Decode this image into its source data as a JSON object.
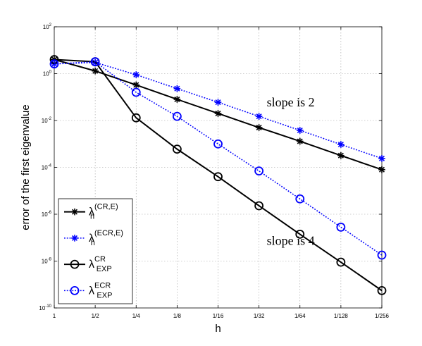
{
  "chart_data": {
    "type": "line",
    "title": "",
    "xlabel": "h",
    "ylabel": "error of the first eigenvalue",
    "yscale": "log",
    "ylim": [
      1e-10,
      100
    ],
    "grid": true,
    "legend_position": "bottom-left",
    "categories": [
      "1",
      "1/2",
      "1/4",
      "1/8",
      "1/16",
      "1/32",
      "1/64",
      "1/128",
      "1/256"
    ],
    "x": [
      1,
      0.5,
      0.25,
      0.125,
      0.0625,
      0.03125,
      0.015625,
      0.0078125,
      0.00390625
    ],
    "yticks": [
      {
        "base": "10",
        "exp": "2"
      },
      {
        "base": "10",
        "exp": "0"
      },
      {
        "base": "10",
        "exp": "-2"
      },
      {
        "base": "10",
        "exp": "-4"
      },
      {
        "base": "10",
        "exp": "-6"
      },
      {
        "base": "10",
        "exp": "-8"
      },
      {
        "base": "10",
        "exp": "-10"
      }
    ],
    "yticks_values": [
      100,
      1,
      0.01,
      0.0001,
      1e-06,
      1e-08,
      1e-10
    ],
    "series": [
      {
        "name": "λ_h^(CR,E)",
        "legend": {
          "sym": "λ",
          "sub": "h",
          "sup": "(CR,E)"
        },
        "marker": "asterisk",
        "color": "#000000",
        "dash": "solid",
        "values": [
          4.0,
          1.3,
          0.33,
          0.08,
          0.02,
          0.005,
          0.0013,
          0.00032,
          8e-05
        ]
      },
      {
        "name": "λ_h^(ECR,E)",
        "legend": {
          "sym": "λ",
          "sub": "h",
          "sup": "(ECR,E)"
        },
        "marker": "asterisk",
        "color": "#0000ff",
        "dash": "dotted",
        "values": [
          2.6,
          3.0,
          0.9,
          0.23,
          0.06,
          0.015,
          0.0038,
          0.00095,
          0.00024
        ]
      },
      {
        "name": "λ_EXP^CR",
        "legend": {
          "sym": "λ",
          "sub": "EXP",
          "sup": "CR"
        },
        "marker": "circle",
        "color": "#000000",
        "dash": "solid",
        "values": [
          4.0,
          3.2,
          0.013,
          0.0006,
          4e-05,
          2.3e-06,
          1.4e-07,
          9e-09,
          5.5e-10
        ]
      },
      {
        "name": "λ_EXP^ECR",
        "legend": {
          "sym": "λ",
          "sub": "EXP",
          "sup": "ECR"
        },
        "marker": "circle",
        "color": "#0000ff",
        "dash": "dotted",
        "values": [
          2.6,
          3.2,
          0.16,
          0.015,
          0.001,
          7e-05,
          4.5e-06,
          2.8e-07,
          1.8e-08
        ]
      }
    ],
    "annotations": [
      {
        "text": "slope is 2",
        "x": 0.03125,
        "y": 0.04
      },
      {
        "text": "slope is 4",
        "x": 0.03125,
        "y": 5e-08
      }
    ]
  }
}
